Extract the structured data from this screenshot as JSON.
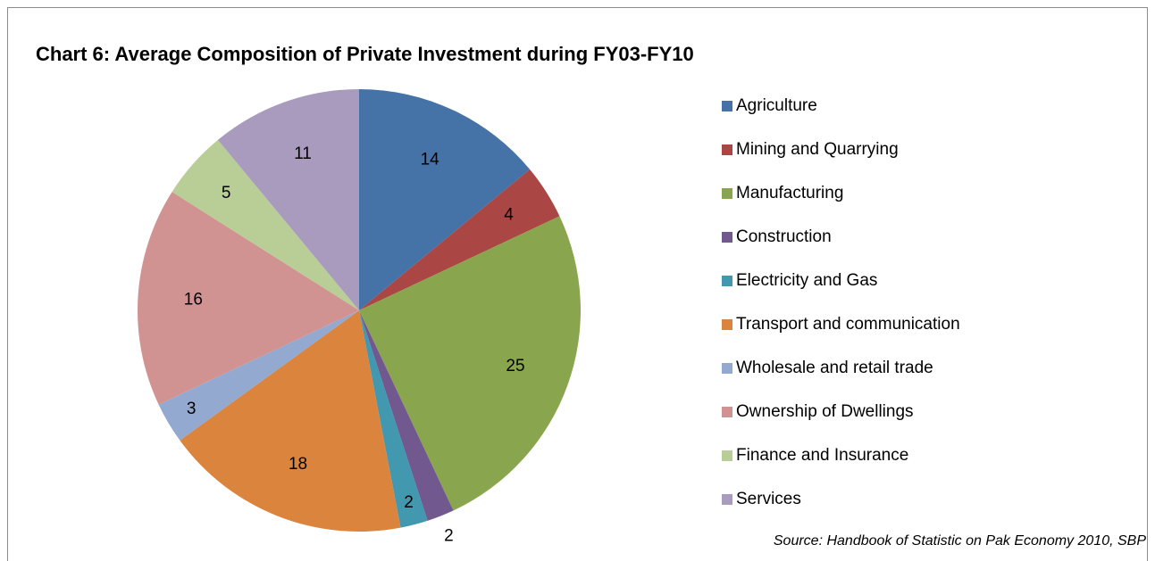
{
  "chart_data": {
    "type": "pie",
    "title": "Chart 6: Average Composition of Private Investment during FY03-FY10",
    "categories": [
      "Agriculture",
      "Mining and Quarrying",
      "Manufacturing",
      "Construction",
      "Electricity and Gas",
      "Transport and communication",
      "Wholesale and retail trade",
      "Ownership of Dwellings",
      "Finance and Insurance",
      "Services"
    ],
    "values": [
      14,
      4,
      25,
      2,
      2,
      18,
      3,
      16,
      5,
      11
    ],
    "colors": [
      "#4572a7",
      "#aa4643",
      "#89a54e",
      "#71588f",
      "#4198af",
      "#db843d",
      "#93a9cf",
      "#d19392",
      "#b9cd96",
      "#a99bbd"
    ],
    "legend": "right",
    "source": "Source: Handbook of Statistic on Pak Economy 2010, SBP"
  }
}
